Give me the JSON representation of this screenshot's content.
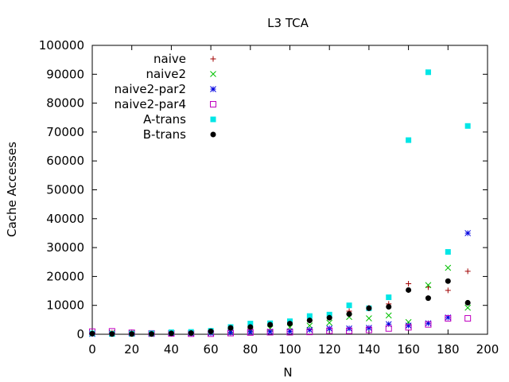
{
  "chart_data": {
    "type": "scatter",
    "title": "L3 TCA",
    "xlabel": "N",
    "ylabel": "Cache Accesses",
    "xlim": [
      0,
      200
    ],
    "ylim": [
      0,
      100000
    ],
    "xticks": [
      0,
      20,
      40,
      60,
      80,
      100,
      120,
      140,
      160,
      180,
      200
    ],
    "yticks": [
      0,
      10000,
      20000,
      30000,
      40000,
      50000,
      60000,
      70000,
      80000,
      90000,
      100000
    ],
    "grid": false,
    "legend_position": "top-left",
    "x": [
      0,
      10,
      20,
      30,
      40,
      50,
      60,
      70,
      80,
      90,
      100,
      110,
      120,
      130,
      140,
      150,
      160,
      170,
      180,
      190
    ],
    "series": [
      {
        "name": "naive",
        "marker": "plus",
        "color": "#a00000",
        "values": [
          300,
          500,
          600,
          300,
          400,
          500,
          900,
          1500,
          2000,
          2800,
          3500,
          4800,
          5800,
          8000,
          9200,
          10500,
          17500,
          16300,
          15200,
          21800
        ]
      },
      {
        "name": "naive2",
        "marker": "cross",
        "color": "#00c000",
        "values": [
          300,
          500,
          500,
          200,
          300,
          400,
          700,
          1200,
          1600,
          2000,
          2400,
          3000,
          4000,
          6000,
          5500,
          6500,
          4200,
          17000,
          23000,
          9200
        ]
      },
      {
        "name": "naive2-par2",
        "marker": "star",
        "color": "#0000e0",
        "values": [
          100,
          200,
          200,
          100,
          300,
          300,
          400,
          600,
          800,
          900,
          1000,
          1500,
          2000,
          2000,
          2200,
          3500,
          3000,
          3800,
          5800,
          35000
        ]
      },
      {
        "name": "naive2-par4",
        "marker": "square-open",
        "color": "#c000c0",
        "values": [
          900,
          1000,
          500,
          300,
          300,
          200,
          200,
          400,
          600,
          700,
          700,
          800,
          1200,
          1200,
          1500,
          2000,
          2400,
          3400,
          5500,
          5500
        ]
      },
      {
        "name": "A-trans",
        "marker": "square-filled",
        "color": "#00e6e6",
        "values": [
          300,
          100,
          200,
          300,
          700,
          800,
          1200,
          2500,
          3700,
          3800,
          4500,
          6300,
          6800,
          10000,
          9000,
          12800,
          67200,
          90700,
          28500,
          72100
        ]
      },
      {
        "name": "B-trans",
        "marker": "circle-filled",
        "color": "#000000",
        "values": [
          200,
          100,
          100,
          100,
          300,
          400,
          1000,
          2200,
          2500,
          3300,
          3700,
          4800,
          5700,
          7000,
          9000,
          9500,
          15300,
          12500,
          18400,
          10900
        ]
      }
    ]
  }
}
